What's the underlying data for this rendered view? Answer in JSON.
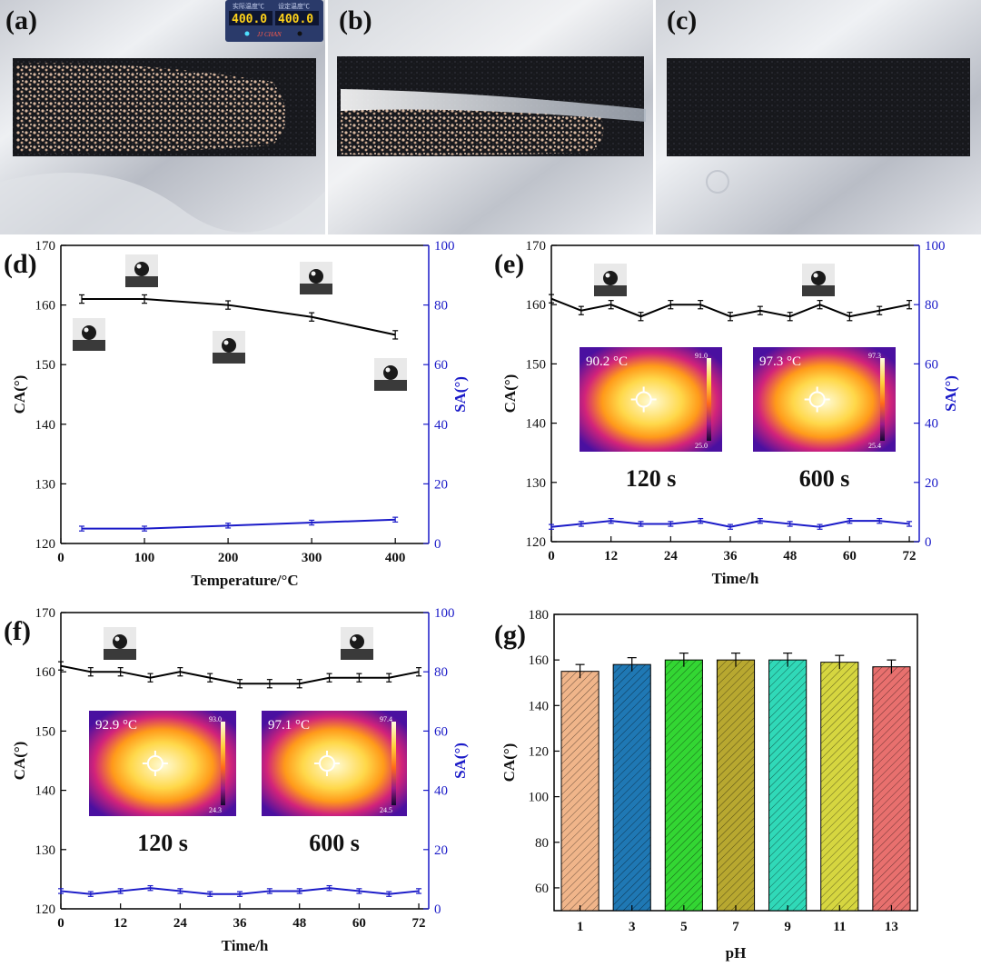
{
  "panels": {
    "a": "(a)",
    "b": "(b)",
    "c": "(c)",
    "d": "(d)",
    "e": "(e)",
    "f": "(f)",
    "g": "(g)"
  },
  "controller": {
    "left_caption": "实际温度℃",
    "right_caption": "设定温度℃",
    "left_value": "400.0",
    "right_value": "400.0",
    "brand": "JJ CHAN"
  },
  "colors": {
    "ca_line": "#000000",
    "sa_line": "#1a1ac8",
    "sa_axis": "#1a1ac8",
    "bar_colors": [
      "#f0b58a",
      "#1f78b4",
      "#33d633",
      "#b8a830",
      "#30d9b8",
      "#d6d640",
      "#e8706e"
    ]
  },
  "chart_data": [
    {
      "id": "d",
      "type": "line",
      "xlabel": "Temperature/°C",
      "ylabel_left": "CA(°)",
      "ylabel_right": "SA(°)",
      "xlim": [
        0,
        440
      ],
      "ylim_left": [
        120,
        170
      ],
      "ylim_right": [
        0,
        100
      ],
      "xticks": [
        "0",
        "100",
        "200",
        "300",
        "400"
      ],
      "xtick_values": [
        0,
        100,
        200,
        300,
        400
      ],
      "yticks_left": [
        "120",
        "130",
        "140",
        "150",
        "160",
        "170"
      ],
      "yticks_right": [
        "0",
        "20",
        "40",
        "60",
        "80",
        "100"
      ],
      "series": [
        {
          "name": "CA",
          "axis": "left",
          "x": [
            25,
            100,
            200,
            300,
            400
          ],
          "values": [
            161,
            161,
            160,
            158,
            155
          ],
          "err": [
            0.7,
            0.7,
            0.7,
            0.7,
            0.7
          ]
        },
        {
          "name": "SA",
          "axis": "right",
          "x": [
            25,
            100,
            200,
            300,
            400
          ],
          "values": [
            5,
            5,
            6,
            7,
            8
          ],
          "err": [
            0.8,
            0.8,
            0.8,
            0.8,
            0.8
          ]
        }
      ]
    },
    {
      "id": "e",
      "type": "line",
      "xlabel": "Time/h",
      "ylabel_left": "CA(°)",
      "ylabel_right": "SA(°)",
      "xlim": [
        0,
        74
      ],
      "ylim_left": [
        120,
        170
      ],
      "ylim_right": [
        0,
        100
      ],
      "xticks": [
        "0",
        "12",
        "24",
        "36",
        "48",
        "60",
        "72"
      ],
      "xtick_values": [
        0,
        12,
        24,
        36,
        48,
        60,
        72
      ],
      "yticks_left": [
        "120",
        "130",
        "140",
        "150",
        "160",
        "170"
      ],
      "yticks_right": [
        "0",
        "20",
        "40",
        "60",
        "80",
        "100"
      ],
      "series": [
        {
          "name": "CA",
          "axis": "left",
          "x": [
            0,
            6,
            12,
            18,
            24,
            30,
            36,
            42,
            48,
            54,
            60,
            66,
            72
          ],
          "values": [
            161,
            159,
            160,
            158,
            160,
            160,
            158,
            159,
            158,
            160,
            158,
            159,
            160
          ],
          "err": [
            0.7,
            0.7,
            0.7,
            0.7,
            0.7,
            0.7,
            0.7,
            0.7,
            0.7,
            0.7,
            0.7,
            0.7,
            0.7
          ]
        },
        {
          "name": "SA",
          "axis": "right",
          "x": [
            0,
            6,
            12,
            18,
            24,
            30,
            36,
            42,
            48,
            54,
            60,
            66,
            72
          ],
          "values": [
            5,
            6,
            7,
            6,
            6,
            7,
            5,
            7,
            6,
            5,
            7,
            7,
            6
          ],
          "err": [
            0.8,
            0.8,
            0.8,
            0.8,
            0.8,
            0.8,
            0.8,
            0.8,
            0.8,
            0.8,
            0.8,
            0.8,
            0.8
          ]
        }
      ],
      "insets": [
        {
          "temp": "90.2 °C",
          "max": "91.0",
          "min": "25.0",
          "time": "120 s"
        },
        {
          "temp": "97.3 °C",
          "max": "97.3",
          "min": "25.4",
          "time": "600 s"
        }
      ]
    },
    {
      "id": "f",
      "type": "line",
      "xlabel": "Time/h",
      "ylabel_left": "CA(°)",
      "ylabel_right": "SA(°)",
      "xlim": [
        0,
        74
      ],
      "ylim_left": [
        120,
        170
      ],
      "ylim_right": [
        0,
        100
      ],
      "xticks": [
        "0",
        "12",
        "24",
        "36",
        "48",
        "60",
        "72"
      ],
      "xtick_values": [
        0,
        12,
        24,
        36,
        48,
        60,
        72
      ],
      "yticks_left": [
        "120",
        "130",
        "140",
        "150",
        "160",
        "170"
      ],
      "yticks_right": [
        "0",
        "20",
        "40",
        "60",
        "80",
        "100"
      ],
      "series": [
        {
          "name": "CA",
          "axis": "left",
          "x": [
            0,
            6,
            12,
            18,
            24,
            30,
            36,
            42,
            48,
            54,
            60,
            66,
            72
          ],
          "values": [
            161,
            160,
            160,
            159,
            160,
            159,
            158,
            158,
            158,
            159,
            159,
            159,
            160
          ],
          "err": [
            0.7,
            0.7,
            0.7,
            0.7,
            0.7,
            0.7,
            0.7,
            0.7,
            0.7,
            0.7,
            0.7,
            0.7,
            0.7
          ]
        },
        {
          "name": "SA",
          "axis": "right",
          "x": [
            0,
            6,
            12,
            18,
            24,
            30,
            36,
            42,
            48,
            54,
            60,
            66,
            72
          ],
          "values": [
            6,
            5,
            6,
            7,
            6,
            5,
            5,
            6,
            6,
            7,
            6,
            5,
            6
          ],
          "err": [
            0.8,
            0.8,
            0.8,
            0.8,
            0.8,
            0.8,
            0.8,
            0.8,
            0.8,
            0.8,
            0.8,
            0.8,
            0.8
          ]
        }
      ],
      "insets": [
        {
          "temp": "92.9 °C",
          "max": "93.0",
          "min": "24.3",
          "time": "120 s"
        },
        {
          "temp": "97.1 °C",
          "max": "97.4",
          "min": "24.5",
          "time": "600 s"
        }
      ]
    },
    {
      "id": "g",
      "type": "bar",
      "xlabel": "pH",
      "ylabel": "CA(°)",
      "ylim": [
        50,
        180
      ],
      "yticks": [
        "60",
        "80",
        "100",
        "120",
        "140",
        "160",
        "180"
      ],
      "categories": [
        "1",
        "3",
        "5",
        "7",
        "9",
        "11",
        "13"
      ],
      "values": [
        155,
        158,
        160,
        160,
        160,
        159,
        157
      ],
      "err": [
        3,
        3,
        3,
        3,
        3,
        3,
        3
      ]
    }
  ]
}
